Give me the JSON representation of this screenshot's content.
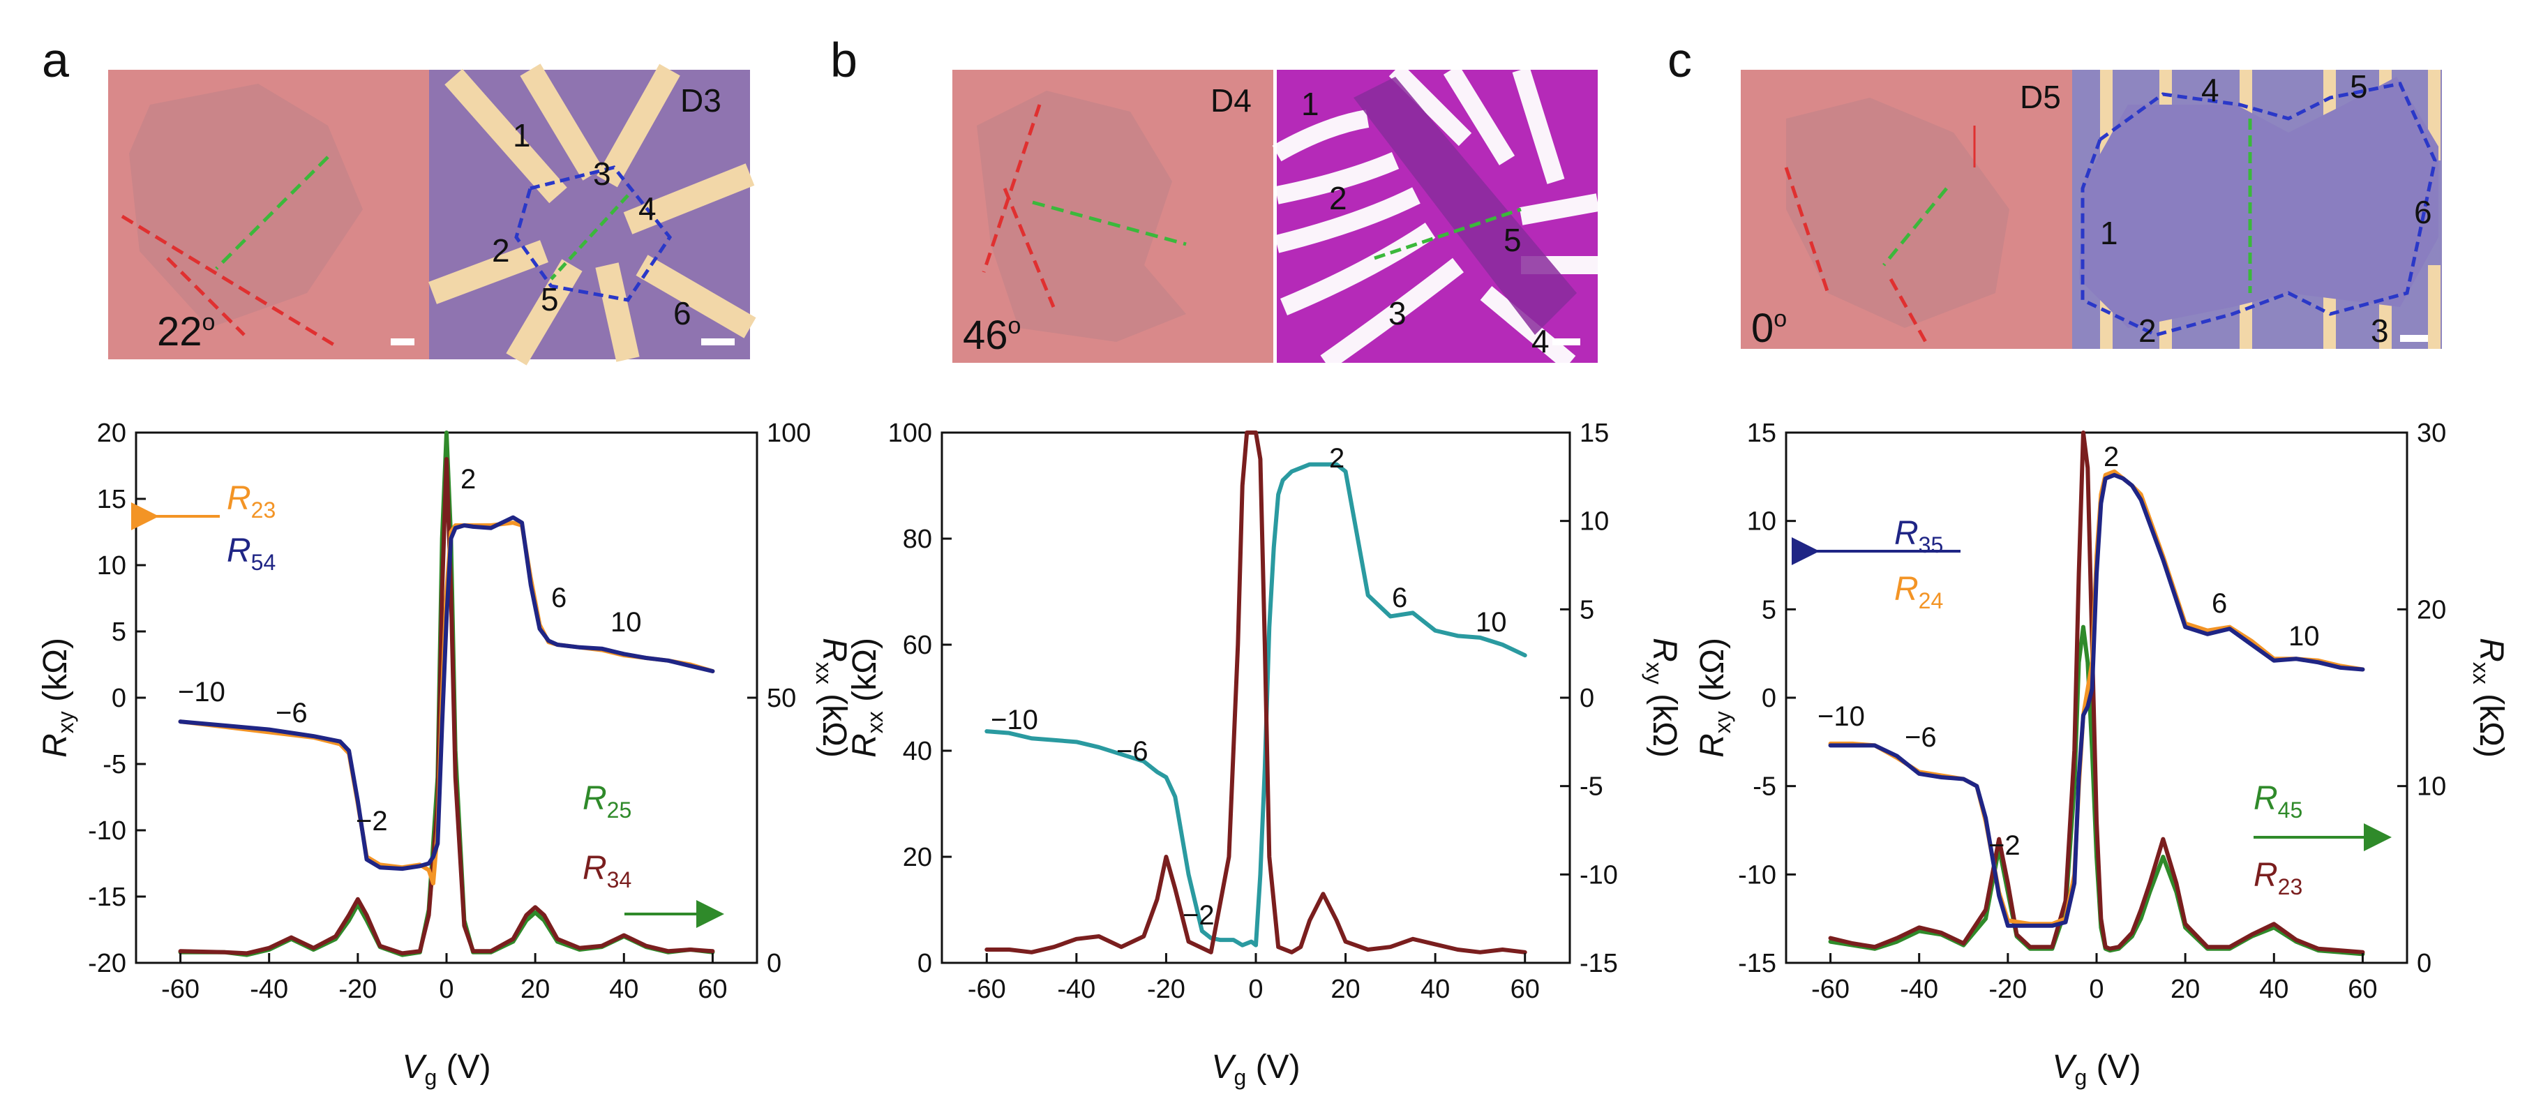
{
  "colors": {
    "orange": "#f39425",
    "navy": "#1f2585",
    "green": "#2f8a2a",
    "darkred": "#7a1e1e",
    "teal": "#2a9aa0",
    "red_dash": "#e03030",
    "green_dash": "#3bb83b",
    "blue_dash": "#2a38c8",
    "substrate_pink": "#d9898a",
    "graphene_grey": "#c68588",
    "device_purple": "#8f74b0",
    "device_magenta": "#b52ab8",
    "electrode_gold": "#f2d7a8"
  },
  "panels": [
    {
      "label": "a",
      "device": "D3",
      "angle": "22",
      "angle_sup": "o",
      "contacts": [
        "1",
        "2",
        "3",
        "4",
        "5",
        "6"
      ]
    },
    {
      "label": "b",
      "device": "D4",
      "angle": "46",
      "angle_sup": "o",
      "contacts": [
        "1",
        "2",
        "3",
        "4",
        "5"
      ]
    },
    {
      "label": "c",
      "device": "D5",
      "angle": "0",
      "angle_sup": "o",
      "contacts": [
        "1",
        "2",
        "3",
        "4",
        "5",
        "6"
      ]
    }
  ],
  "chart_data": [
    {
      "type": "line",
      "panel": "a",
      "x_label": "V",
      "x_label_sub": "g",
      "x_unit": " (V)",
      "x_ticks": [
        "-60",
        "-40",
        "-20",
        "0",
        "20",
        "40",
        "60"
      ],
      "xlim": [
        -70,
        70
      ],
      "y_left": {
        "label": "R",
        "sub": "xy",
        "unit": " (kΩ)",
        "lim": [
          -20,
          20
        ],
        "ticks": [
          "-20",
          "-15",
          "-10",
          "-5",
          "0",
          "5",
          "10",
          "15",
          "20"
        ]
      },
      "y_right": {
        "label": "R",
        "sub": "xx",
        "unit": " (kΩ)",
        "lim": [
          0,
          100
        ],
        "ticks": [
          "0",
          "50",
          "100"
        ]
      },
      "legend": [
        {
          "name": "R",
          "sub": "23",
          "color": "orange"
        },
        {
          "name": "R",
          "sub": "54",
          "color": "navy"
        },
        {
          "name": "R",
          "sub": "25",
          "color": "green"
        },
        {
          "name": "R",
          "sub": "34",
          "color": "darkred"
        }
      ],
      "annotations": [
        "−10",
        "−6",
        "−2",
        "2",
        "6",
        "10"
      ],
      "series": [
        {
          "name": "R23",
          "axis": "left",
          "color": "orange",
          "x": [
            -60,
            -50,
            -40,
            -30,
            -24,
            -22,
            -20,
            -18,
            -15,
            -10,
            -6,
            -4,
            -3,
            -2,
            -1,
            0,
            1,
            2,
            4,
            6,
            10,
            15,
            17,
            19,
            21,
            23,
            25,
            30,
            35,
            40,
            45,
            50,
            55,
            60
          ],
          "y": [
            -1.8,
            -2.2,
            -2.6,
            -3.0,
            -3.5,
            -4.2,
            -8.0,
            -12.0,
            -12.6,
            -12.8,
            -12.6,
            -13.0,
            -14.0,
            -10.0,
            0,
            8.0,
            12.5,
            13.0,
            13.0,
            13.0,
            13.0,
            13.2,
            13.0,
            9.0,
            5.5,
            4.2,
            4.0,
            3.8,
            3.6,
            3.2,
            3.0,
            2.8,
            2.5,
            2.0
          ]
        },
        {
          "name": "R54",
          "axis": "left",
          "color": "navy",
          "x": [
            -60,
            -50,
            -40,
            -30,
            -24,
            -22,
            -20,
            -18,
            -15,
            -10,
            -6,
            -4,
            -3,
            -2,
            -1,
            0,
            1,
            2,
            4,
            6,
            10,
            15,
            17,
            19,
            21,
            23,
            25,
            30,
            35,
            40,
            45,
            50,
            55,
            60
          ],
          "y": [
            -1.8,
            -2.1,
            -2.4,
            -2.9,
            -3.3,
            -4.0,
            -7.8,
            -12.2,
            -12.8,
            -12.9,
            -12.7,
            -12.5,
            -12.0,
            -11.0,
            -2.0,
            6.0,
            12.0,
            12.8,
            13.0,
            12.9,
            12.8,
            13.6,
            13.2,
            8.5,
            5.2,
            4.3,
            4.0,
            3.8,
            3.7,
            3.3,
            3.0,
            2.8,
            2.4,
            2.0
          ]
        },
        {
          "name": "R25",
          "axis": "right",
          "color": "green",
          "x": [
            -60,
            -50,
            -45,
            -40,
            -35,
            -30,
            -25,
            -22,
            -20,
            -18,
            -15,
            -10,
            -6,
            -4,
            -2,
            -1,
            0,
            1,
            2,
            4,
            6,
            10,
            15,
            18,
            20,
            22,
            25,
            30,
            35,
            40,
            45,
            50,
            55,
            60
          ],
          "y": [
            2,
            2,
            1.5,
            2.5,
            4.5,
            2.5,
            4.5,
            8,
            11,
            8,
            3,
            1.5,
            2,
            10,
            35,
            80,
            100,
            80,
            40,
            8,
            2,
            2,
            4,
            8,
            9.5,
            8,
            4,
            2.5,
            3,
            5,
            3,
            2,
            2.5,
            2
          ]
        },
        {
          "name": "R34",
          "axis": "right",
          "color": "darkred",
          "x": [
            -60,
            -50,
            -45,
            -40,
            -35,
            -30,
            -25,
            -22,
            -20,
            -18,
            -15,
            -10,
            -6,
            -4,
            -2,
            -1,
            0,
            1,
            2,
            4,
            6,
            10,
            15,
            18,
            20,
            22,
            25,
            30,
            35,
            40,
            45,
            50,
            55,
            60
          ],
          "y": [
            2.2,
            2,
            1.8,
            2.8,
            4.8,
            2.8,
            5,
            9,
            12,
            9,
            3.2,
            1.8,
            2.2,
            9,
            30,
            70,
            95,
            70,
            35,
            7,
            2.2,
            2.2,
            4.5,
            9,
            10.5,
            9,
            4.5,
            2.8,
            3.2,
            5.2,
            3.2,
            2.2,
            2.5,
            2.2
          ]
        }
      ]
    },
    {
      "type": "line",
      "panel": "b",
      "x_label": "V",
      "x_label_sub": "g",
      "x_unit": " (V)",
      "x_ticks": [
        "-60",
        "-40",
        "-20",
        "0",
        "20",
        "40",
        "60"
      ],
      "xlim": [
        -70,
        70
      ],
      "y_left": {
        "label": "R",
        "sub": "xx",
        "unit": " (kΩ)",
        "lim": [
          0,
          100
        ],
        "ticks": [
          "0",
          "20",
          "40",
          "60",
          "80",
          "100"
        ]
      },
      "y_right": {
        "label": "R",
        "sub": "xy",
        "unit": " (kΩ)",
        "lim": [
          -15,
          15
        ],
        "ticks": [
          "-15",
          "-10",
          "-5",
          "0",
          "5",
          "10",
          "15"
        ]
      },
      "annotations": [
        "−10",
        "−6",
        "−2",
        "2",
        "6",
        "10"
      ],
      "series": [
        {
          "name": "Rxy",
          "axis": "right",
          "color": "teal",
          "x": [
            -60,
            -55,
            -50,
            -45,
            -40,
            -35,
            -30,
            -25,
            -22,
            -20,
            -18,
            -15,
            -12,
            -10,
            -8,
            -5,
            -3,
            -1,
            0,
            1,
            2,
            3,
            4,
            5,
            6,
            8,
            10,
            12,
            15,
            18,
            20,
            22,
            25,
            30,
            35,
            40,
            45,
            50,
            55,
            60
          ],
          "y": [
            -1.9,
            -2.0,
            -2.3,
            -2.4,
            -2.5,
            -2.8,
            -3.2,
            -3.6,
            -4.2,
            -4.5,
            -5.6,
            -10.0,
            -13.2,
            -13.6,
            -13.7,
            -13.7,
            -14.0,
            -13.8,
            -14.0,
            -10.0,
            -4.0,
            4.0,
            8.5,
            11.5,
            12.3,
            12.8,
            13.0,
            13.2,
            13.2,
            13.2,
            12.8,
            10.0,
            5.8,
            4.6,
            4.8,
            3.8,
            3.5,
            3.4,
            3.0,
            2.4
          ]
        },
        {
          "name": "Rxx",
          "axis": "left",
          "color": "darkred",
          "x": [
            -60,
            -55,
            -50,
            -45,
            -40,
            -35,
            -30,
            -25,
            -22,
            -20,
            -18,
            -15,
            -10,
            -6,
            -4,
            -3,
            -2,
            -1,
            0,
            1,
            2,
            3,
            5,
            8,
            10,
            12,
            15,
            18,
            20,
            25,
            30,
            35,
            40,
            45,
            50,
            55,
            60
          ],
          "y": [
            2.5,
            2.5,
            2.0,
            3.0,
            4.5,
            5.0,
            3.0,
            5.0,
            12.0,
            20.0,
            14.0,
            4.0,
            2.0,
            20.0,
            60.0,
            90.0,
            100.0,
            100.0,
            100.0,
            95.0,
            60.0,
            20.0,
            3.0,
            2.0,
            3.0,
            8.0,
            13.0,
            8.0,
            4.0,
            2.5,
            3.0,
            4.5,
            3.5,
            2.5,
            2.0,
            2.5,
            2.0
          ]
        }
      ]
    },
    {
      "type": "line",
      "panel": "c",
      "x_label": "V",
      "x_label_sub": "g",
      "x_unit": " (V)",
      "x_ticks": [
        "-60",
        "-40",
        "-20",
        "0",
        "20",
        "40",
        "60"
      ],
      "xlim": [
        -70,
        70
      ],
      "y_left": {
        "label": "R",
        "sub": "xy",
        "unit": " (kΩ)",
        "lim": [
          -15,
          15
        ],
        "ticks": [
          "-15",
          "-10",
          "-5",
          "0",
          "5",
          "10",
          "15"
        ]
      },
      "y_right": {
        "label": "R",
        "sub": "xx",
        "unit": " (kΩ)",
        "lim": [
          0,
          30
        ],
        "ticks": [
          "0",
          "10",
          "20",
          "30"
        ]
      },
      "legend": [
        {
          "name": "R",
          "sub": "35",
          "color": "navy"
        },
        {
          "name": "R",
          "sub": "24",
          "color": "orange"
        },
        {
          "name": "R",
          "sub": "45",
          "color": "green"
        },
        {
          "name": "R",
          "sub": "23",
          "color": "darkred"
        }
      ],
      "annotations": [
        "−10",
        "−6",
        "−2",
        "2",
        "6",
        "10"
      ],
      "series": [
        {
          "name": "R24",
          "axis": "left",
          "color": "orange",
          "x": [
            -60,
            -55,
            -50,
            -45,
            -40,
            -35,
            -30,
            -27,
            -25,
            -22,
            -20,
            -15,
            -10,
            -7,
            -5,
            -4,
            -3,
            -2,
            -1,
            0,
            1,
            2,
            4,
            6,
            8,
            10,
            15,
            20,
            25,
            30,
            35,
            40,
            45,
            50,
            55,
            60
          ],
          "y": [
            -2.6,
            -2.6,
            -2.7,
            -3.4,
            -4.2,
            -4.4,
            -4.6,
            -5.0,
            -7.0,
            -11.0,
            -12.6,
            -12.8,
            -12.8,
            -12.5,
            -10.0,
            -5.0,
            -1.0,
            0.5,
            2.0,
            8.0,
            11.5,
            12.6,
            12.8,
            12.4,
            12.0,
            11.5,
            8.0,
            4.2,
            3.8,
            4.0,
            3.2,
            2.2,
            2.2,
            2.1,
            1.8,
            1.6
          ]
        },
        {
          "name": "R35",
          "axis": "left",
          "color": "navy",
          "x": [
            -60,
            -55,
            -50,
            -45,
            -40,
            -35,
            -30,
            -27,
            -25,
            -22,
            -20,
            -15,
            -10,
            -7,
            -5,
            -4,
            -3,
            -2,
            -1,
            0,
            1,
            2,
            4,
            6,
            8,
            10,
            15,
            20,
            25,
            30,
            35,
            40,
            45,
            50,
            55,
            60
          ],
          "y": [
            -2.7,
            -2.7,
            -2.7,
            -3.3,
            -4.3,
            -4.5,
            -4.6,
            -5.0,
            -6.8,
            -11.2,
            -12.9,
            -12.9,
            -12.9,
            -12.7,
            -10.5,
            -4.5,
            -1.0,
            -0.5,
            0.5,
            7.0,
            11.0,
            12.4,
            12.6,
            12.4,
            12.0,
            11.2,
            7.8,
            4.0,
            3.6,
            3.9,
            3.0,
            2.1,
            2.2,
            2.0,
            1.7,
            1.6
          ]
        },
        {
          "name": "R45",
          "axis": "right",
          "color": "green",
          "x": [
            -60,
            -55,
            -50,
            -45,
            -40,
            -35,
            -30,
            -25,
            -22,
            -20,
            -18,
            -15,
            -10,
            -7,
            -5,
            -4,
            -3,
            -2,
            -1,
            0,
            1,
            2,
            3,
            5,
            8,
            10,
            12,
            15,
            18,
            20,
            25,
            30,
            35,
            40,
            45,
            50,
            55,
            60
          ],
          "y": [
            1.2,
            1.0,
            0.8,
            1.2,
            1.8,
            1.6,
            1.0,
            2.5,
            6.5,
            4.0,
            1.5,
            0.8,
            0.8,
            3.0,
            10.0,
            17.0,
            19.0,
            17.0,
            12.0,
            6.0,
            2.0,
            0.8,
            0.7,
            0.8,
            1.5,
            2.5,
            4.0,
            6.0,
            4.0,
            2.0,
            0.8,
            0.8,
            1.5,
            2.0,
            1.2,
            0.7,
            0.6,
            0.5
          ]
        },
        {
          "name": "R23",
          "axis": "right",
          "color": "darkred",
          "x": [
            -60,
            -55,
            -50,
            -45,
            -40,
            -35,
            -30,
            -25,
            -22,
            -20,
            -18,
            -15,
            -10,
            -7,
            -5,
            -4,
            -3,
            -2,
            -1,
            0,
            1,
            2,
            3,
            5,
            8,
            10,
            12,
            15,
            18,
            20,
            25,
            30,
            35,
            40,
            45,
            50,
            55,
            60
          ],
          "y": [
            1.4,
            1.1,
            0.9,
            1.4,
            2.0,
            1.7,
            1.1,
            3.0,
            7.0,
            4.5,
            1.6,
            0.9,
            0.9,
            3.5,
            12.0,
            22.0,
            30.0,
            28.0,
            18.0,
            8.0,
            2.5,
            0.9,
            0.8,
            0.9,
            1.7,
            3.0,
            4.5,
            7.0,
            4.5,
            2.2,
            0.9,
            0.9,
            1.6,
            2.2,
            1.3,
            0.8,
            0.7,
            0.6
          ]
        }
      ]
    }
  ]
}
